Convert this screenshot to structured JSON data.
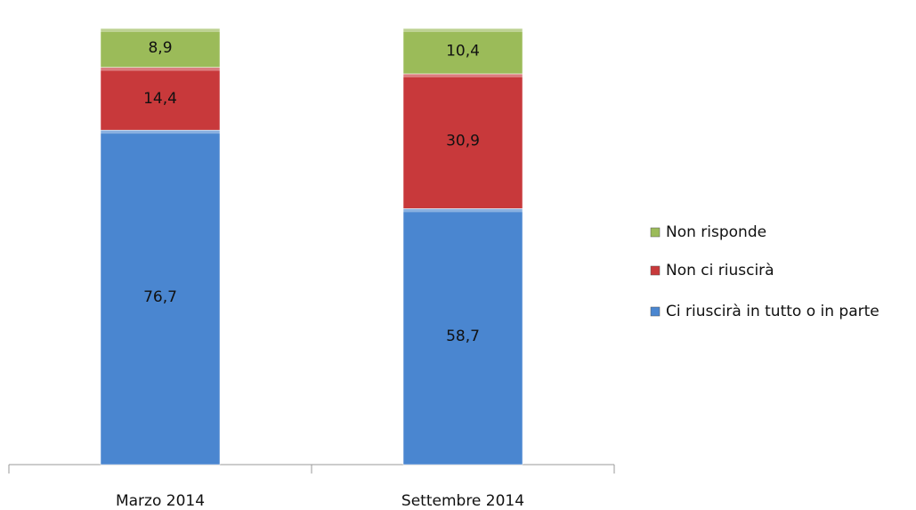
{
  "chart_data": {
    "type": "stacked_bar",
    "categories": [
      "Marzo 2014",
      "Settembre 2014"
    ],
    "series": [
      {
        "name": "Ci riuscirà in tutto o in parte",
        "color": "#4a86d0",
        "values": [
          76.7,
          58.7
        ],
        "value_labels": [
          "76,7",
          "58,7"
        ]
      },
      {
        "name": "Non ci riuscirà",
        "color": "#c8393b",
        "values": [
          14.4,
          30.9
        ],
        "value_labels": [
          "14,4",
          "30,9"
        ]
      },
      {
        "name": "Non risponde",
        "color": "#9bbb59",
        "values": [
          8.9,
          10.4
        ],
        "value_labels": [
          "8,9",
          "10,4"
        ]
      }
    ],
    "legend": "right"
  }
}
